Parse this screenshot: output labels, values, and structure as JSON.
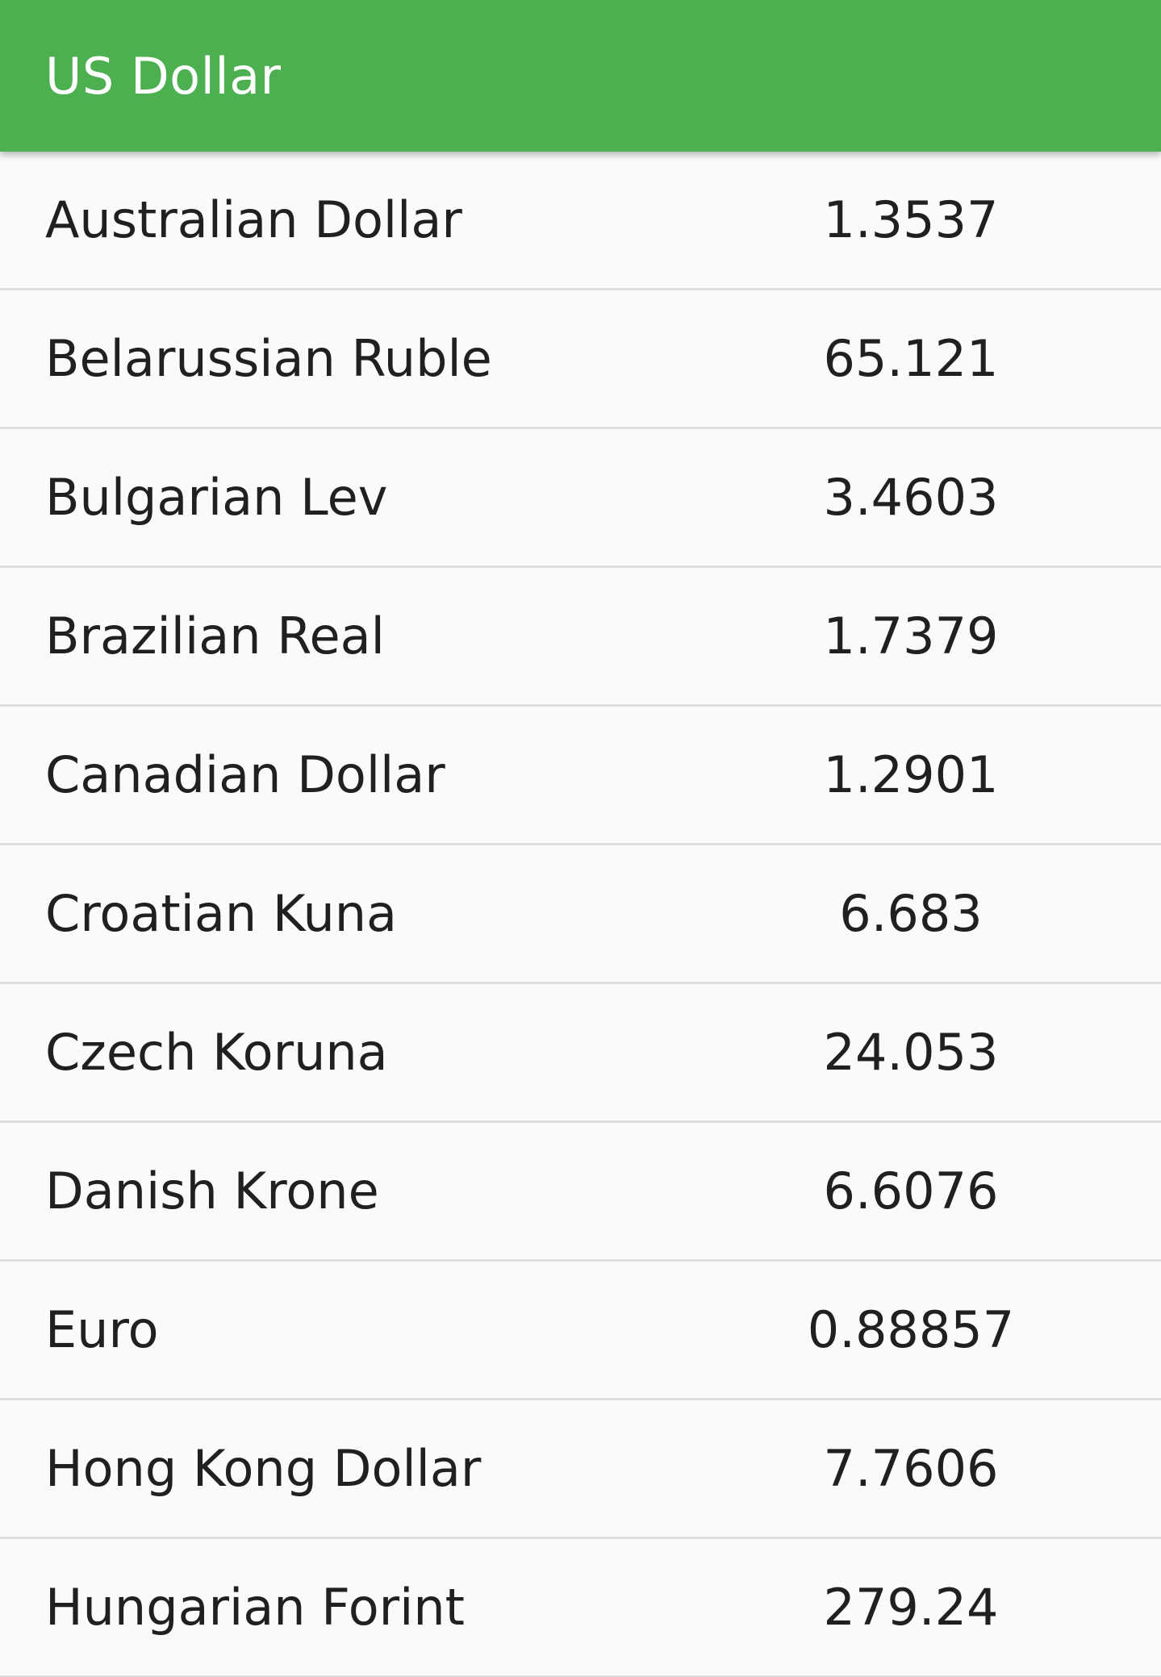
{
  "app_bar": {
    "title": "US Dollar",
    "color": "#4caf50"
  },
  "rates": [
    {
      "name": "Australian Dollar",
      "rate": "1.3537"
    },
    {
      "name": "Belarussian Ruble",
      "rate": "65.121"
    },
    {
      "name": "Bulgarian Lev",
      "rate": "3.4603"
    },
    {
      "name": "Brazilian Real",
      "rate": "1.7379"
    },
    {
      "name": "Canadian Dollar",
      "rate": "1.2901"
    },
    {
      "name": "Croatian Kuna",
      "rate": "6.683"
    },
    {
      "name": "Czech Koruna",
      "rate": "24.053"
    },
    {
      "name": "Danish Krone",
      "rate": "6.6076"
    },
    {
      "name": "Euro",
      "rate": "0.88857"
    },
    {
      "name": "Hong Kong Dollar",
      "rate": "7.7606"
    },
    {
      "name": "Hungarian Forint",
      "rate": "279.24"
    }
  ]
}
